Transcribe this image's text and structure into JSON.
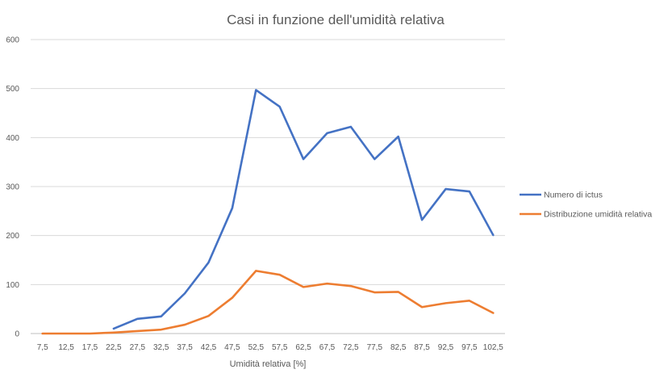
{
  "chart_data": {
    "type": "line",
    "title": "Casi in funzione dell'umidità relativa",
    "xlabel": "Umidità relativa [%]",
    "ylabel": "",
    "ylim": [
      0,
      600
    ],
    "yticks": [
      "0",
      "100",
      "200",
      "300",
      "400",
      "500",
      "600"
    ],
    "categories": [
      "7,5",
      "12,5",
      "17,5",
      "22,5",
      "27,5",
      "32,5",
      "37,5",
      "42,5",
      "47,5",
      "52,5",
      "57,5",
      "62,5",
      "67,5",
      "72,5",
      "77,5",
      "82,5",
      "87,5",
      "92,5",
      "97,5",
      "102,5"
    ],
    "grid": true,
    "legend_position": "right",
    "series": [
      {
        "name": "Numero di ictus",
        "color": "#4472c4",
        "values": [
          null,
          null,
          null,
          10,
          30,
          35,
          82,
          145,
          256,
          497,
          463,
          356,
          409,
          422,
          356,
          402,
          232,
          295,
          290,
          201
        ]
      },
      {
        "name": "Distribuzione umidità relativa",
        "color": "#ed7d31",
        "values": [
          0,
          0,
          0,
          2,
          5,
          8,
          18,
          36,
          73,
          128,
          120,
          95,
          102,
          97,
          84,
          85,
          54,
          62,
          67,
          42
        ]
      }
    ]
  }
}
